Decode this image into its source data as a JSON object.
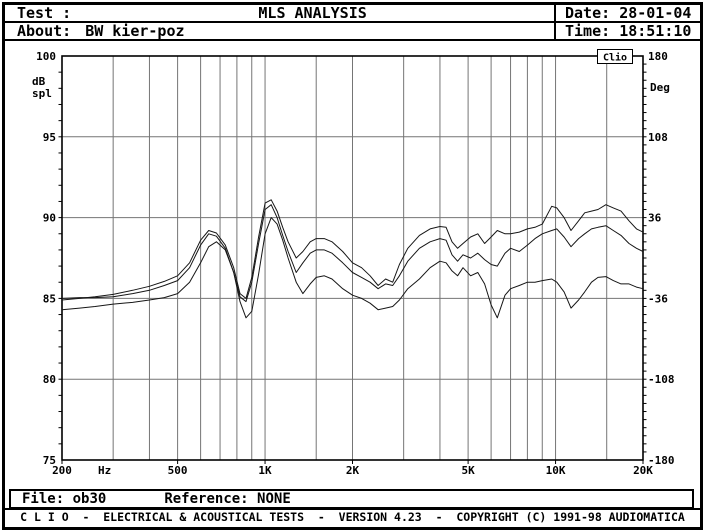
{
  "window": {
    "header": {
      "test_label": "Test :",
      "title": "MLS ANALYSIS",
      "about_label": "About:",
      "about_value": "BW kier-poz",
      "date_label": "Date:",
      "date_value": "28-01-04",
      "time_label": "Time:",
      "time_value": "18:51:10"
    },
    "status": {
      "file_label": "File:",
      "file_value": "ob30",
      "reference_label": "Reference:",
      "reference_value": "NONE"
    },
    "badge": "Clio",
    "footer_text": "C L I O  -  ELECTRICAL & ACOUSTICAL TESTS  -  VERSION 4.23  -  COPYRIGHT (C) 1991-98 AUDIOMATICA"
  },
  "chart_data": {
    "type": "line",
    "title": "MLS ANALYSIS",
    "x_scale": "log",
    "xlim": [
      200,
      20000
    ],
    "ylim": [
      75,
      100
    ],
    "y2lim": [
      -180,
      180
    ],
    "xlabel_unit": "Hz",
    "ylabel_lines": [
      "dB",
      "spl"
    ],
    "y2label": "Deg",
    "grid": true,
    "legend": "none",
    "x_ticks": [
      {
        "f": 200,
        "label": "200"
      },
      {
        "f": 500,
        "label": "500"
      },
      {
        "f": 1000,
        "label": "1K"
      },
      {
        "f": 2000,
        "label": "2K"
      },
      {
        "f": 5000,
        "label": "5K"
      },
      {
        "f": 10000,
        "label": "10K"
      },
      {
        "f": 20000,
        "label": "20K"
      }
    ],
    "x_gridlines": [
      300,
      400,
      500,
      600,
      700,
      800,
      900,
      1000,
      1500,
      2000,
      3000,
      4000,
      5000,
      6000,
      7000,
      8000,
      9000,
      10000,
      15000
    ],
    "y_ticks_left": [
      {
        "db": 100,
        "label": "100"
      },
      {
        "db": 95,
        "label": "95"
      },
      {
        "db": 90,
        "label": "90"
      },
      {
        "db": 85,
        "label": "85"
      },
      {
        "db": 80,
        "label": "80"
      },
      {
        "db": 75,
        "label": "75"
      }
    ],
    "y_gridlines_db": [
      95,
      90,
      85,
      80
    ],
    "y_ticks_right": [
      {
        "deg": 180,
        "label": "180"
      },
      {
        "deg": 108,
        "label": "108"
      },
      {
        "deg": 36,
        "label": "36"
      },
      {
        "deg": -36,
        "label": "-36"
      },
      {
        "deg": -108,
        "label": "-108"
      },
      {
        "deg": -180,
        "label": "-180"
      }
    ],
    "colors": {
      "grid": "#757575",
      "curve": "#161616",
      "axis": "#000000"
    },
    "x": [
      200,
      230,
      260,
      300,
      350,
      400,
      450,
      500,
      550,
      600,
      640,
      680,
      730,
      780,
      820,
      860,
      900,
      950,
      1000,
      1050,
      1100,
      1150,
      1200,
      1280,
      1350,
      1430,
      1500,
      1600,
      1700,
      1850,
      2000,
      2150,
      2300,
      2450,
      2600,
      2750,
      2900,
      3100,
      3400,
      3700,
      4000,
      4200,
      4400,
      4600,
      4800,
      5100,
      5400,
      5700,
      6000,
      6300,
      6700,
      7000,
      7500,
      8000,
      8500,
      9000,
      9700,
      10100,
      10700,
      11300,
      12000,
      12600,
      13300,
      14000,
      14900,
      15800,
      16800,
      17900,
      19000,
      20000
    ],
    "series": [
      {
        "name": "response-top",
        "values": [
          84.9,
          85.0,
          85.1,
          85.25,
          85.5,
          85.75,
          86.05,
          86.4,
          87.2,
          88.6,
          89.2,
          89.05,
          88.3,
          86.9,
          85.3,
          85.0,
          86.3,
          88.8,
          90.9,
          91.1,
          90.4,
          89.4,
          88.5,
          87.5,
          87.9,
          88.5,
          88.7,
          88.7,
          88.5,
          87.9,
          87.2,
          86.9,
          86.4,
          85.8,
          86.2,
          86.0,
          87.1,
          88.1,
          88.9,
          89.3,
          89.45,
          89.4,
          88.5,
          88.1,
          88.4,
          88.8,
          89.0,
          88.4,
          88.8,
          89.2,
          89.0,
          89.0,
          89.1,
          89.3,
          89.4,
          89.6,
          90.7,
          90.6,
          90.0,
          89.2,
          89.8,
          90.3,
          90.4,
          90.5,
          90.8,
          90.6,
          90.4,
          89.8,
          89.3,
          89.1
        ]
      },
      {
        "name": "response-mid",
        "values": [
          85.0,
          85.05,
          85.05,
          85.1,
          85.3,
          85.5,
          85.8,
          86.1,
          86.9,
          88.3,
          89.0,
          88.85,
          88.1,
          86.6,
          85.1,
          84.8,
          86.0,
          88.4,
          90.5,
          90.8,
          90.0,
          88.9,
          87.9,
          86.6,
          87.2,
          87.8,
          88.0,
          88.0,
          87.8,
          87.2,
          86.6,
          86.3,
          86.0,
          85.6,
          85.9,
          85.8,
          86.4,
          87.3,
          88.1,
          88.5,
          88.7,
          88.6,
          87.7,
          87.3,
          87.7,
          87.5,
          87.8,
          87.4,
          87.1,
          87.0,
          87.8,
          88.1,
          87.9,
          88.3,
          88.7,
          89.0,
          89.2,
          89.3,
          88.8,
          88.2,
          88.7,
          89.0,
          89.3,
          89.4,
          89.5,
          89.2,
          88.9,
          88.4,
          88.1,
          87.9
        ]
      },
      {
        "name": "response-low",
        "values": [
          84.3,
          84.4,
          84.5,
          84.65,
          84.75,
          84.9,
          85.05,
          85.3,
          86.0,
          87.2,
          88.2,
          88.5,
          88.0,
          86.6,
          84.8,
          83.8,
          84.2,
          86.5,
          89.0,
          90.0,
          89.6,
          88.6,
          87.5,
          86.0,
          85.3,
          85.9,
          86.3,
          86.4,
          86.2,
          85.6,
          85.2,
          85.0,
          84.7,
          84.3,
          84.4,
          84.5,
          84.9,
          85.6,
          86.2,
          86.9,
          87.3,
          87.2,
          86.7,
          86.4,
          86.9,
          86.4,
          86.6,
          85.9,
          84.6,
          83.8,
          85.2,
          85.6,
          85.8,
          86.0,
          86.0,
          86.1,
          86.2,
          86.0,
          85.4,
          84.4,
          84.9,
          85.4,
          86.0,
          86.3,
          86.35,
          86.1,
          85.9,
          85.9,
          85.7,
          85.6
        ]
      }
    ]
  }
}
